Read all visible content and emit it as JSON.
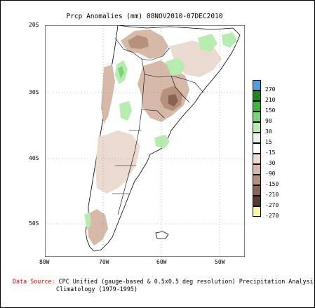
{
  "title": "Prcp Anomalies (mm) 08NOV2010-07DEC2010",
  "axes": {
    "lat_labels": [
      "20S",
      "30S",
      "40S",
      "50S"
    ],
    "lon_labels": [
      "80W",
      "70W",
      "60W",
      "50W"
    ]
  },
  "legend": {
    "items": [
      {
        "label": "270",
        "color": "#4b9fe6"
      },
      {
        "label": "210",
        "color": "#1a8a1a"
      },
      {
        "label": "150",
        "color": "#3cb73c"
      },
      {
        "label": "90",
        "color": "#7ad37a"
      },
      {
        "label": "30",
        "color": "#b7ecb0"
      },
      {
        "label": "15",
        "color": "#e4f7df"
      },
      {
        "label": "-15",
        "color": "#ffffff"
      },
      {
        "label": "-30",
        "color": "#eadad0"
      },
      {
        "label": "-90",
        "color": "#d6b9a8"
      },
      {
        "label": "-150",
        "color": "#b8917c"
      },
      {
        "label": "-210",
        "color": "#8a6453"
      },
      {
        "label": "-270",
        "color": "#5a3a2c"
      },
      {
        "label": "",
        "color": "#fbf5a6"
      }
    ]
  },
  "source": {
    "prefix": "Data Source:",
    "line1": " CPC Unified (gauge-based & 0.5x0.5 deg resolution) Precipitation Analysis",
    "line2": "Climatology (1979-1995)"
  }
}
